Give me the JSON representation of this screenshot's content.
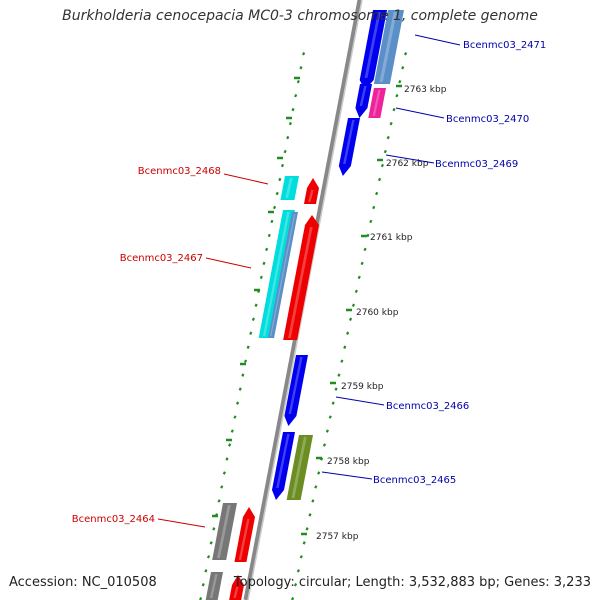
{
  "title": "Burkholderia cenocepacia MC0-3 chromosome 1, complete genome",
  "accession": "Accession: NC_010508",
  "topology": "Topology: circular; Length: 3,532,883 bp; Genes: 3,233",
  "colors": {
    "backbone": "#888888",
    "ruler_ticks": "#228B22",
    "label_red": "#cc0000",
    "label_blue": "#0000aa",
    "gene_blue": "#0000ee",
    "gene_steelblue": "#5b8fc7",
    "gene_red": "#ee0000",
    "gene_cyan": "#00dddd",
    "gene_magenta": "#ee2299",
    "gene_olive": "#6b8e23",
    "gene_gray": "#777777"
  },
  "ruler": {
    "labels": [
      "2763 kbp",
      "2762 kbp",
      "2761 kbp",
      "2760 kbp",
      "2759 kbp",
      "2758 kbp",
      "2757 kbp"
    ]
  },
  "genes": [
    {
      "name": "Bcenmc03_2471",
      "side": "right",
      "label_color": "blue"
    },
    {
      "name": "Bcenmc03_2470",
      "side": "right",
      "label_color": "blue"
    },
    {
      "name": "Bcenmc03_2469",
      "side": "right",
      "label_color": "blue"
    },
    {
      "name": "Bcenmc03_2468",
      "side": "left",
      "label_color": "red"
    },
    {
      "name": "Bcenmc03_2467",
      "side": "left",
      "label_color": "red"
    },
    {
      "name": "Bcenmc03_2466",
      "side": "right",
      "label_color": "blue"
    },
    {
      "name": "Bcenmc03_2465",
      "side": "right",
      "label_color": "blue"
    },
    {
      "name": "Bcenmc03_2464",
      "side": "left",
      "label_color": "red"
    }
  ]
}
